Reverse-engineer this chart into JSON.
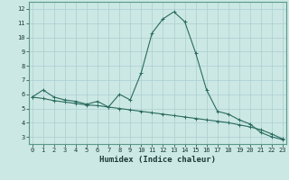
{
  "title": "",
  "xlabel": "Humidex (Indice chaleur)",
  "ylabel": "",
  "bg_color": "#cce8e4",
  "line_color": "#2a6b5e",
  "grid_color": "#aaced0",
  "x_values": [
    0,
    1,
    2,
    3,
    4,
    5,
    6,
    7,
    8,
    9,
    10,
    11,
    12,
    13,
    14,
    15,
    16,
    17,
    18,
    19,
    20,
    21,
    22,
    23
  ],
  "curve1": [
    5.8,
    6.3,
    5.8,
    5.6,
    5.5,
    5.3,
    5.5,
    5.1,
    6.0,
    5.6,
    7.5,
    10.3,
    11.3,
    11.8,
    11.1,
    8.9,
    6.3,
    4.8,
    4.6,
    4.2,
    3.9,
    3.3,
    3.0,
    2.8
  ],
  "curve2": [
    5.8,
    5.7,
    5.55,
    5.45,
    5.35,
    5.25,
    5.2,
    5.1,
    5.0,
    4.9,
    4.8,
    4.7,
    4.6,
    4.5,
    4.4,
    4.3,
    4.2,
    4.1,
    4.0,
    3.85,
    3.7,
    3.5,
    3.2,
    2.85
  ],
  "xlim": [
    -0.3,
    23.3
  ],
  "ylim": [
    2.5,
    12.5
  ],
  "yticks": [
    3,
    4,
    5,
    6,
    7,
    8,
    9,
    10,
    11,
    12
  ],
  "xticks": [
    0,
    1,
    2,
    3,
    4,
    5,
    6,
    7,
    8,
    9,
    10,
    11,
    12,
    13,
    14,
    15,
    16,
    17,
    18,
    19,
    20,
    21,
    22,
    23
  ],
  "tick_fontsize": 5.0,
  "xlabel_fontsize": 6.5,
  "marker": "+"
}
